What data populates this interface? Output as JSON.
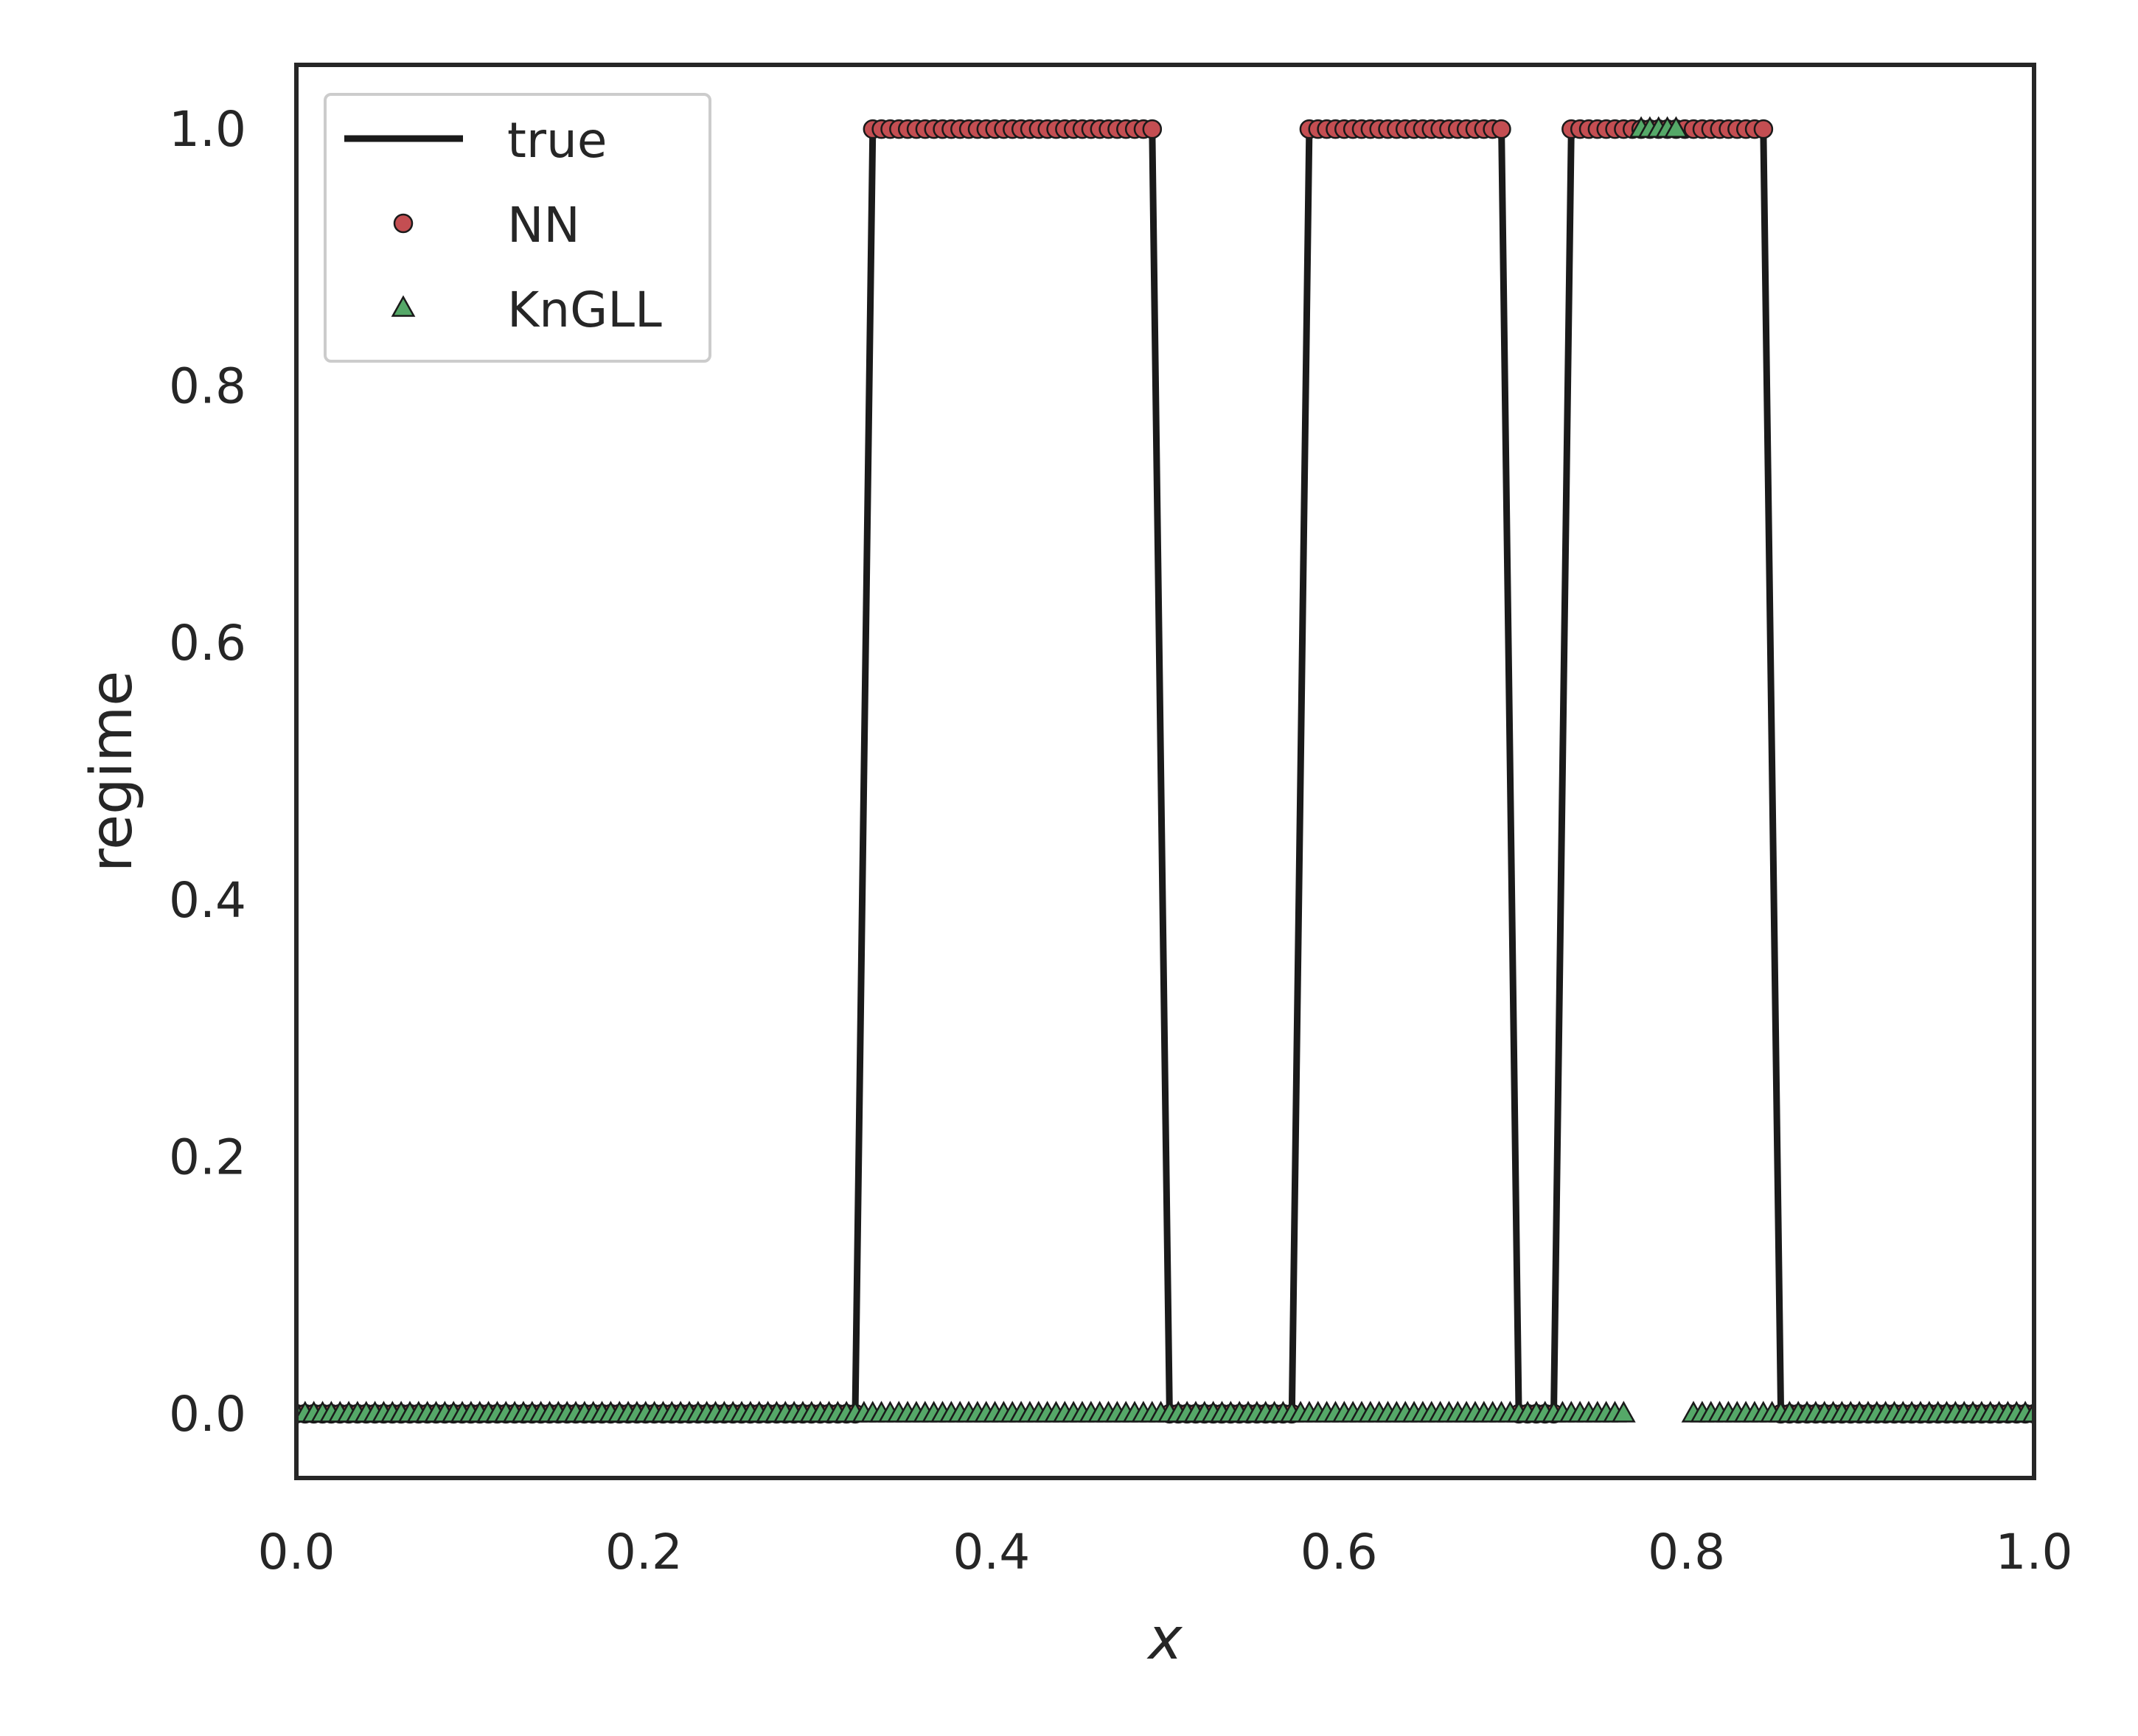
{
  "chart_data": {
    "type": "line",
    "title": "",
    "xlabel": "x",
    "ylabel": "regime",
    "xlim": [
      0.0,
      1.0
    ],
    "ylim": [
      -0.05,
      1.05
    ],
    "x_ticks": [
      "0.0",
      "0.2",
      "0.4",
      "0.6",
      "0.8",
      "1.0"
    ],
    "y_ticks": [
      "0.0",
      "0.2",
      "0.4",
      "0.6",
      "0.8",
      "1.0"
    ],
    "grid": false,
    "legend_position": "top-left",
    "series": [
      {
        "name": "true",
        "style": "line",
        "color": "#1a1a1a",
        "x": [
          0.0,
          0.3216,
          0.3317,
          0.4925,
          0.5025,
          0.5729,
          0.5829,
          0.6935,
          0.7035,
          0.7236,
          0.7337,
          0.8442,
          0.8543,
          1.0
        ],
        "y": [
          0,
          0,
          1,
          1,
          0,
          0,
          1,
          1,
          0,
          0,
          1,
          1,
          0,
          0
        ]
      },
      {
        "name": "NN",
        "style": "circle",
        "color": "#c44e52",
        "segments": [
          {
            "x_start": 0.0,
            "x_end": 0.3216,
            "y": 0
          },
          {
            "x_start": 0.3317,
            "x_end": 0.4925,
            "y": 1
          },
          {
            "x_start": 0.5025,
            "x_end": 0.5729,
            "y": 0
          },
          {
            "x_start": 0.5829,
            "x_end": 0.6935,
            "y": 1
          },
          {
            "x_start": 0.7035,
            "x_end": 0.7236,
            "y": 0
          },
          {
            "x_start": 0.7337,
            "x_end": 0.8442,
            "y": 1
          },
          {
            "x_start": 0.8543,
            "x_end": 1.0,
            "y": 0
          }
        ]
      },
      {
        "name": "KnGLL",
        "style": "triangle",
        "color": "#55a868",
        "segments": [
          {
            "x_start": 0.0,
            "x_end": 0.7638,
            "y": 0
          },
          {
            "x_start": 0.7739,
            "x_end": 0.794,
            "y": 1
          },
          {
            "x_start": 0.804,
            "x_end": 1.0,
            "y": 0
          }
        ]
      }
    ]
  },
  "colors": {
    "axes": "#262626",
    "marker_edge": "#1a1a1a"
  }
}
